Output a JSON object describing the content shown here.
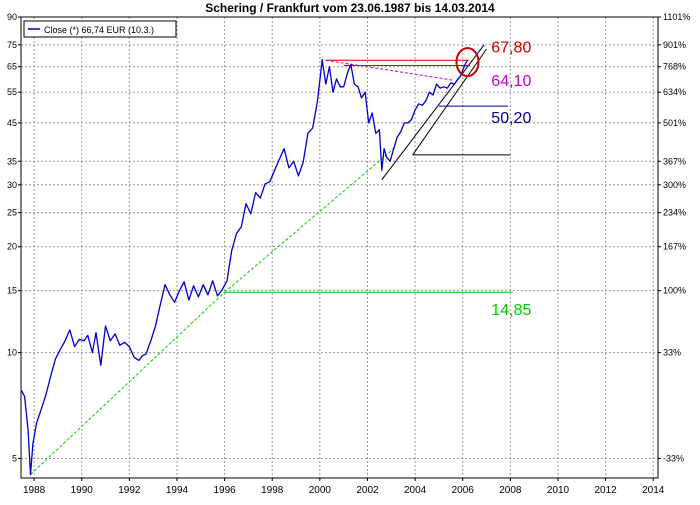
{
  "chart_data": {
    "type": "line",
    "title": "Schering / Frankfurt vom 23.06.1987 bis 14.03.2014",
    "legend_label": "Close (*) 66,74 EUR (10.3.)",
    "legend_placement": "top-left",
    "grid": true,
    "y_scale": "log",
    "ylim": [
      4.4,
      90
    ],
    "xlim": [
      1987.45,
      2014.2
    ],
    "left_ticks": [
      "90",
      "75",
      "65",
      "55",
      "45",
      "35",
      "30",
      "25",
      "20",
      "15",
      "10",
      "5"
    ],
    "left_tick_values": [
      90,
      75,
      65,
      55,
      45,
      35,
      30,
      25,
      20,
      15,
      10,
      5
    ],
    "right_ticks": [
      "1101%",
      "901%",
      "768%",
      "634%",
      "501%",
      "367%",
      "300%",
      "234%",
      "167%",
      "100%",
      "33%",
      "-33%"
    ],
    "right_tick_values": [
      90,
      75,
      65,
      55,
      45,
      35,
      30,
      25,
      20,
      15,
      10,
      5
    ],
    "x_ticks": [
      "1988",
      "1990",
      "1992",
      "1994",
      "1996",
      "1998",
      "2000",
      "2002",
      "2004",
      "2006",
      "2008",
      "2010",
      "2012",
      "2014"
    ],
    "x_tick_values": [
      1988,
      1990,
      1992,
      1994,
      1996,
      1998,
      2000,
      2002,
      2004,
      2006,
      2008,
      2010,
      2012,
      2014
    ],
    "colors": {
      "price": "#0000cc",
      "grid": "#999999",
      "support": "#00cc00",
      "resistance": "#cc0000",
      "magenta": "#cc00cc",
      "blue": "#000099",
      "black": "#000000"
    },
    "series": [
      {
        "name": "Close (*) 66,74 EUR (10.3.)",
        "x": [
          1987.47,
          1987.6,
          1987.75,
          1987.85,
          1987.95,
          1988.1,
          1988.3,
          1988.5,
          1988.7,
          1988.9,
          1989.1,
          1989.3,
          1989.5,
          1989.7,
          1989.9,
          1990.1,
          1990.25,
          1990.45,
          1990.6,
          1990.8,
          1991.0,
          1991.2,
          1991.4,
          1991.6,
          1991.8,
          1992.0,
          1992.2,
          1992.4,
          1992.55,
          1992.7,
          1992.9,
          1993.1,
          1993.3,
          1993.5,
          1993.7,
          1993.9,
          1994.1,
          1994.3,
          1994.5,
          1994.7,
          1994.9,
          1995.1,
          1995.3,
          1995.5,
          1995.7,
          1995.9,
          1996.1,
          1996.3,
          1996.5,
          1996.7,
          1996.9,
          1997.1,
          1997.3,
          1997.5,
          1997.7,
          1997.9,
          1998.1,
          1998.3,
          1998.5,
          1998.7,
          1998.9,
          1999.1,
          1999.3,
          1999.5,
          1999.7,
          1999.9,
          2000.1,
          2000.25,
          2000.4,
          2000.55,
          2000.7,
          2000.85,
          2001.0,
          2001.15,
          2001.3,
          2001.45,
          2001.6,
          2001.75,
          2001.9,
          2002.05,
          2002.2,
          2002.35,
          2002.5,
          2002.6,
          2002.7,
          2002.8,
          2002.95,
          2003.1,
          2003.25,
          2003.4,
          2003.55,
          2003.7,
          2003.85,
          2004.0,
          2004.15,
          2004.3,
          2004.45,
          2004.6,
          2004.75,
          2004.9,
          2005.05,
          2005.2,
          2005.35,
          2005.5,
          2005.65,
          2005.8,
          2005.9,
          2006.0,
          2006.1,
          2006.2
        ],
        "values": [
          7.8,
          7.5,
          6.0,
          4.5,
          5.5,
          6.3,
          6.9,
          7.6,
          8.6,
          9.6,
          10.2,
          10.8,
          11.6,
          10.4,
          10.9,
          10.8,
          11.2,
          10.0,
          11.4,
          9.2,
          11.9,
          10.8,
          11.3,
          10.5,
          10.7,
          10.4,
          9.7,
          9.5,
          9.8,
          9.9,
          10.8,
          11.9,
          13.7,
          15.6,
          14.6,
          13.9,
          15.0,
          15.9,
          14.1,
          15.5,
          14.4,
          15.6,
          14.6,
          16.0,
          14.5,
          15.1,
          16.0,
          19.5,
          21.8,
          22.8,
          26.5,
          24.8,
          28.5,
          27.5,
          30.2,
          30.6,
          33.0,
          35.5,
          38.0,
          33.5,
          35.0,
          31.8,
          34.8,
          42.0,
          43.5,
          52.0,
          68.0,
          58.0,
          65.0,
          55.0,
          60.0,
          57.0,
          57.0,
          62.0,
          66.0,
          58.0,
          57.0,
          53.0,
          55.0,
          45.0,
          48.0,
          42.0,
          43.0,
          33.0,
          38.0,
          36.0,
          35.0,
          38.0,
          41.0,
          42.5,
          45.0,
          45.0,
          46.0,
          49.0,
          51.0,
          50.5,
          52.0,
          55.0,
          54.0,
          58.0,
          56.5,
          57.0,
          56.5,
          58.5,
          58.0,
          60.0,
          61.0,
          63.5,
          66.0,
          67.8
        ]
      }
    ],
    "annotations": {
      "levels": [
        {
          "label": "67,80",
          "value": 67.8,
          "x_from": 2000.25,
          "x_to": 2006.25,
          "color": "#cc0000"
        },
        {
          "label": "64,10",
          "value": 64.1,
          "color": "#cc00cc"
        },
        {
          "label": "50,20",
          "value": 50.2,
          "x_from": 2005.0,
          "x_to": 2007.9,
          "color": "#000099"
        },
        {
          "label": "14,85",
          "value": 14.85,
          "x_from": 1996.0,
          "x_to": 2008.1,
          "color": "#00cc00"
        }
      ]
    }
  }
}
